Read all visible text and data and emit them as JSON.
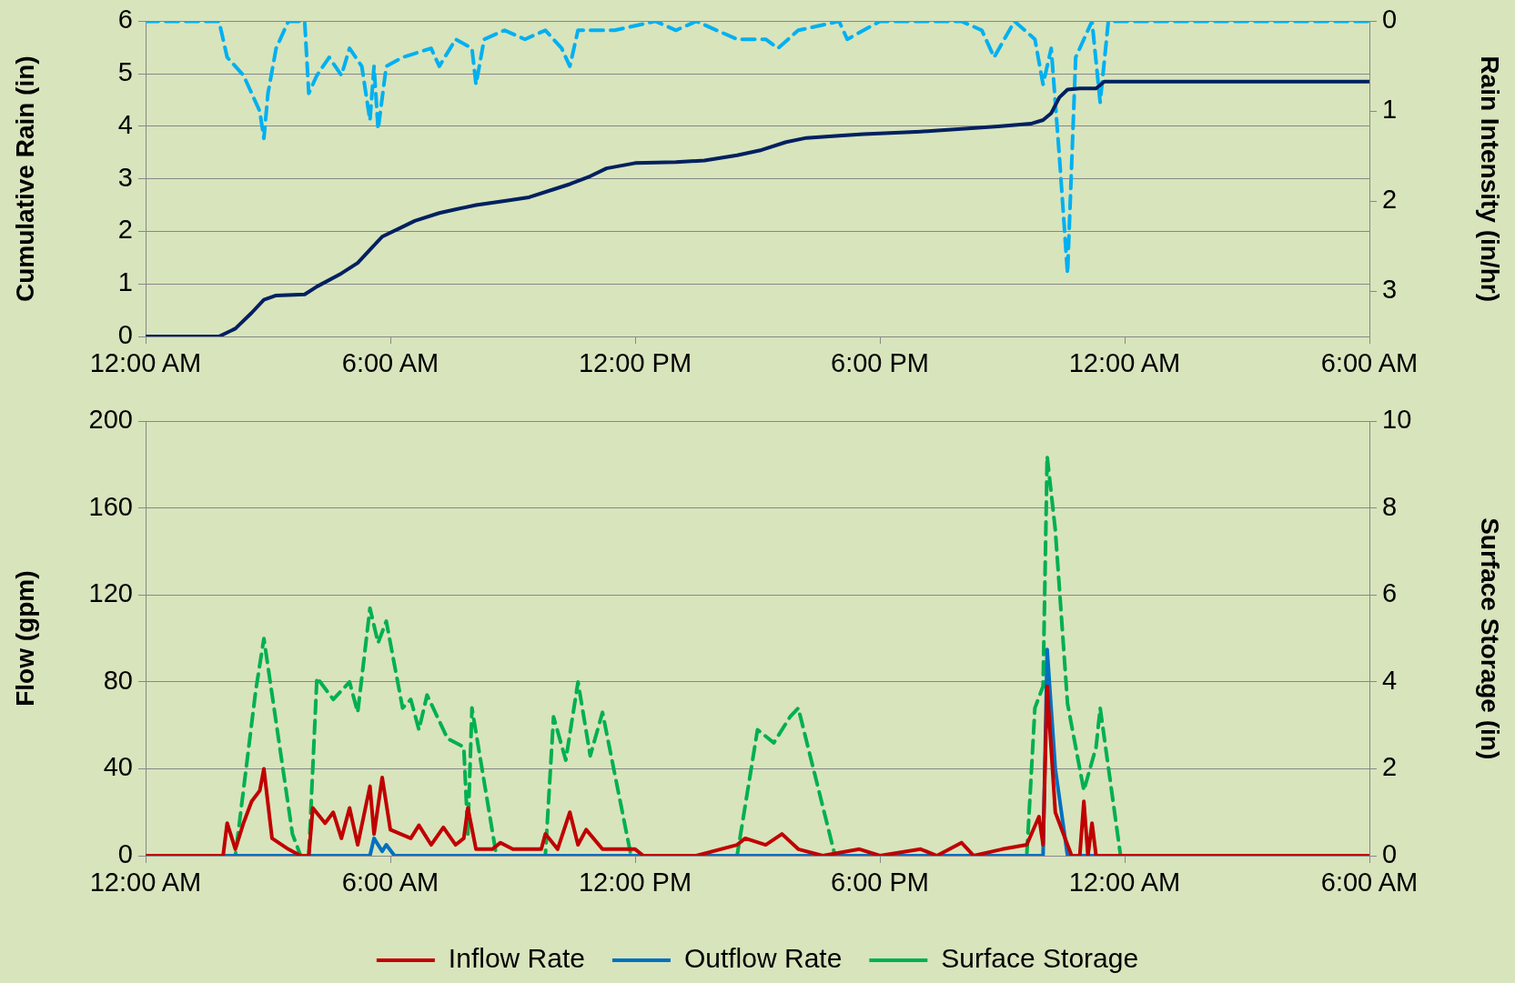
{
  "chart_data": [
    {
      "type": "line",
      "ylabel": "Cumulative Rain (in)",
      "y2label": "Rain Intensity (in/hr)",
      "xlim": [
        "--01-01T00:00",
        "--01-02T06:00"
      ],
      "xticks": [
        {
          "value": "--01-01T00:00",
          "label": "12:00 AM"
        },
        {
          "value": "--01-01T06:00",
          "label": "6:00 AM"
        },
        {
          "value": "--01-01T12:00",
          "label": "12:00 PM"
        },
        {
          "value": "--01-01T18:00",
          "label": "6:00 PM"
        },
        {
          "value": "--01-02T00:00",
          "label": "12:00 AM"
        },
        {
          "value": "--01-02T06:00",
          "label": "6:00 AM"
        }
      ],
      "ylim": [
        0,
        6
      ],
      "yticks": [
        0,
        1,
        2,
        3,
        4,
        5,
        6
      ],
      "y2lim": [
        3.5,
        0
      ],
      "y2ticks": [
        0,
        1,
        2,
        3
      ],
      "grid": "y",
      "marker": "none",
      "series": [
        {
          "color": "#002060",
          "line_style": "solid",
          "x": [
            "--01-01T00:00",
            "--01-01T01:48",
            "--01-01T02:12",
            "--01-01T02:36",
            "--01-01T02:54",
            "--01-01T03:12",
            "--01-01T03:54",
            "--01-01T04:12",
            "--01-01T04:48",
            "--01-01T05:12",
            "--01-01T05:30",
            "--01-01T05:48",
            "--01-01T06:12",
            "--01-01T06:36",
            "--01-01T07:12",
            "--01-01T07:36",
            "--01-01T08:06",
            "--01-01T08:48",
            "--01-01T09:24",
            "--01-01T10:00",
            "--01-01T10:24",
            "--01-01T10:54",
            "--01-01T11:18",
            "--01-01T12:00",
            "--01-01T13:00",
            "--01-01T13:42",
            "--01-01T14:30",
            "--01-01T15:06",
            "--01-01T15:42",
            "--01-01T16:12",
            "--01-01T17:00",
            "--01-01T17:36",
            "--01-01T18:30",
            "--01-01T19:00",
            "--01-01T20:00",
            "--01-01T20:54",
            "--01-01T21:42",
            "--01-01T22:00",
            "--01-01T22:12",
            "--01-01T22:24",
            "--01-01T22:36",
            "--01-01T22:54",
            "--01-01T23:18",
            "--01-01T23:30",
            "--01-02T06:00"
          ],
          "values": [
            0,
            0,
            0.15,
            0.45,
            0.7,
            0.78,
            0.8,
            0.95,
            1.2,
            1.4,
            1.65,
            1.9,
            2.05,
            2.2,
            2.35,
            2.42,
            2.5,
            2.58,
            2.65,
            2.8,
            2.9,
            3.05,
            3.2,
            3.3,
            3.32,
            3.35,
            3.45,
            3.55,
            3.7,
            3.78,
            3.82,
            3.85,
            3.88,
            3.9,
            3.95,
            4.0,
            4.05,
            4.12,
            4.25,
            4.55,
            4.7,
            4.72,
            4.72,
            4.85,
            4.85
          ]
        },
        {
          "color": "#00b0f0",
          "line_style": "dashed",
          "axis": "y2",
          "x": [
            "--01-01T00:00",
            "--01-01T01:48",
            "--01-01T02:00",
            "--01-01T02:24",
            "--01-01T02:48",
            "--01-01T02:54",
            "--01-01T03:00",
            "--01-01T03:12",
            "--01-01T03:30",
            "--01-01T03:54",
            "--01-01T04:00",
            "--01-01T04:12",
            "--01-01T04:30",
            "--01-01T04:48",
            "--01-01T05:00",
            "--01-01T05:18",
            "--01-01T05:30",
            "--01-01T05:36",
            "--01-01T05:42",
            "--01-01T05:54",
            "--01-01T06:18",
            "--01-01T07:00",
            "--01-01T07:12",
            "--01-01T07:36",
            "--01-01T08:00",
            "--01-01T08:06",
            "--01-01T08:18",
            "--01-01T08:48",
            "--01-01T09:18",
            "--01-01T09:48",
            "--01-01T10:12",
            "--01-01T10:24",
            "--01-01T10:36",
            "--01-01T11:30",
            "--01-01T12:30",
            "--01-01T13:00",
            "--01-01T13:30",
            "--01-01T14:30",
            "--01-01T15:12",
            "--01-01T15:30",
            "--01-01T16:00",
            "--01-01T17:00",
            "--01-01T17:12",
            "--01-01T18:00",
            "--01-01T20:00",
            "--01-01T20:30",
            "--01-01T20:48",
            "--01-01T21:18",
            "--01-01T21:48",
            "--01-01T22:00",
            "--01-01T22:12",
            "--01-01T22:24",
            "--01-01T22:36",
            "--01-01T22:48",
            "--01-01T23:12",
            "--01-01T23:24",
            "--01-01T23:36",
            "--01-02T06:00"
          ],
          "values": [
            0,
            0,
            0.4,
            0.6,
            1.0,
            1.3,
            0.8,
            0.3,
            0,
            0,
            0.8,
            0.6,
            0.4,
            0.6,
            0.3,
            0.5,
            1.1,
            0.5,
            1.2,
            0.5,
            0.4,
            0.3,
            0.5,
            0.2,
            0.3,
            0.7,
            0.2,
            0.1,
            0.2,
            0.1,
            0.3,
            0.5,
            0.1,
            0.1,
            0,
            0.1,
            0,
            0.2,
            0.2,
            0.3,
            0.1,
            0,
            0.2,
            0,
            0,
            0.1,
            0.4,
            0,
            0.2,
            0.7,
            0.3,
            1.5,
            2.8,
            0.4,
            0,
            0.9,
            0,
            0
          ]
        }
      ]
    },
    {
      "type": "line",
      "ylabel": "Flow (gpm)",
      "y2label": "Surface Storage (in)",
      "xlim": [
        "--01-01T00:00",
        "--01-02T06:00"
      ],
      "xticks": [
        {
          "value": "--01-01T00:00",
          "label": "12:00 AM"
        },
        {
          "value": "--01-01T06:00",
          "label": "6:00 AM"
        },
        {
          "value": "--01-01T12:00",
          "label": "12:00 PM"
        },
        {
          "value": "--01-01T18:00",
          "label": "6:00 PM"
        },
        {
          "value": "--01-02T00:00",
          "label": "12:00 AM"
        },
        {
          "value": "--01-02T06:00",
          "label": "6:00 AM"
        }
      ],
      "ylim": [
        0,
        200
      ],
      "yticks": [
        0,
        40,
        80,
        120,
        160,
        200
      ],
      "y2lim": [
        0,
        10
      ],
      "y2ticks": [
        0,
        2,
        4,
        6,
        8,
        10
      ],
      "grid": "y",
      "marker": "none",
      "legend": "bottom",
      "series": [
        {
          "name": "Inflow Rate",
          "color": "#c00000",
          "line_style": "solid",
          "x": [
            "--01-01T00:00",
            "--01-01T01:54",
            "--01-01T02:00",
            "--01-01T02:12",
            "--01-01T02:24",
            "--01-01T02:36",
            "--01-01T02:48",
            "--01-01T02:54",
            "--01-01T03:06",
            "--01-01T03:30",
            "--01-01T03:48",
            "--01-01T04:00",
            "--01-01T04:06",
            "--01-01T04:24",
            "--01-01T04:36",
            "--01-01T04:48",
            "--01-01T05:00",
            "--01-01T05:12",
            "--01-01T05:30",
            "--01-01T05:36",
            "--01-01T05:48",
            "--01-01T06:00",
            "--01-01T06:30",
            "--01-01T06:42",
            "--01-01T07:00",
            "--01-01T07:18",
            "--01-01T07:36",
            "--01-01T07:48",
            "--01-01T07:54",
            "--01-01T08:06",
            "--01-01T08:30",
            "--01-01T08:42",
            "--01-01T09:00",
            "--01-01T09:42",
            "--01-01T09:48",
            "--01-01T10:06",
            "--01-01T10:24",
            "--01-01T10:36",
            "--01-01T10:48",
            "--01-01T11:12",
            "--01-01T12:00",
            "--01-01T12:12",
            "--01-01T13:30",
            "--01-01T14:30",
            "--01-01T14:42",
            "--01-01T15:12",
            "--01-01T15:36",
            "--01-01T16:00",
            "--01-01T16:36",
            "--01-01T17:30",
            "--01-01T18:00",
            "--01-01T19:00",
            "--01-01T19:24",
            "--01-01T20:00",
            "--01-01T20:18",
            "--01-01T21:00",
            "--01-01T21:36",
            "--01-01T21:54",
            "--01-01T22:00",
            "--01-01T22:06",
            "--01-01T22:18",
            "--01-01T22:42",
            "--01-01T22:54",
            "--01-01T23:00",
            "--01-01T23:06",
            "--01-01T23:12",
            "--01-01T23:18",
            "--01-02T06:00"
          ],
          "values": [
            0,
            0,
            15,
            3,
            15,
            25,
            30,
            40,
            8,
            3,
            0,
            0,
            22,
            15,
            20,
            8,
            22,
            5,
            32,
            10,
            36,
            12,
            8,
            14,
            5,
            13,
            5,
            8,
            22,
            3,
            3,
            6,
            3,
            3,
            10,
            3,
            20,
            5,
            12,
            3,
            3,
            0,
            0,
            5,
            8,
            5,
            10,
            3,
            0,
            3,
            0,
            3,
            0,
            6,
            0,
            3,
            5,
            18,
            5,
            78,
            20,
            0,
            0,
            25,
            0,
            15,
            0,
            0
          ]
        },
        {
          "name": "Outflow Rate",
          "color": "#0070c0",
          "line_style": "solid",
          "x": [
            "--01-01T00:00",
            "--01-01T05:30",
            "--01-01T05:36",
            "--01-01T05:48",
            "--01-01T05:54",
            "--01-01T06:06",
            "--01-01T22:00",
            "--01-01T22:06",
            "--01-01T22:18",
            "--01-01T22:36",
            "--01-02T06:00"
          ],
          "values": [
            0,
            0,
            8,
            2,
            5,
            0,
            0,
            95,
            40,
            0,
            0
          ]
        },
        {
          "name": "Surface Storage",
          "color": "#00b050",
          "line_style": "dashed",
          "axis": "y2",
          "x": [
            "--01-01T00:00",
            "--01-01T02:12",
            "--01-01T02:42",
            "--01-01T02:54",
            "--01-01T03:36",
            "--01-01T03:48",
            "--01-01T04:00",
            "--01-01T04:12",
            "--01-01T04:36",
            "--01-01T05:00",
            "--01-01T05:12",
            "--01-01T05:30",
            "--01-01T05:42",
            "--01-01T05:54",
            "--01-01T06:18",
            "--01-01T06:30",
            "--01-01T06:42",
            "--01-01T06:54",
            "--01-01T07:24",
            "--01-01T07:48",
            "--01-01T07:54",
            "--01-01T08:00",
            "--01-01T08:36",
            "--01-01T09:48",
            "--01-01T10:00",
            "--01-01T10:18",
            "--01-01T10:36",
            "--01-01T10:54",
            "--01-01T11:12",
            "--01-01T11:54",
            "--01-01T14:30",
            "--01-01T15:00",
            "--01-01T15:24",
            "--01-01T15:48",
            "--01-01T16:00",
            "--01-01T16:54",
            "--01-01T21:36",
            "--01-01T21:48",
            "--01-01T22:00",
            "--01-01T22:06",
            "--01-01T22:18",
            "--01-01T22:36",
            "--01-01T23:00",
            "--01-01T23:18",
            "--01-01T23:24",
            "--01-01T23:54",
            "--01-02T06:00"
          ],
          "values": [
            0,
            0,
            3.8,
            5.0,
            0.5,
            0,
            0,
            4.1,
            3.6,
            4.0,
            3.3,
            5.7,
            4.9,
            5.4,
            3.4,
            3.6,
            2.9,
            3.7,
            2.7,
            2.5,
            0.5,
            3.4,
            0,
            0,
            3.2,
            2.2,
            4.0,
            2.3,
            3.3,
            0,
            0,
            2.9,
            2.6,
            3.2,
            3.4,
            0,
            0,
            3.4,
            3.9,
            9.2,
            7.5,
            3.5,
            1.5,
            2.5,
            3.4,
            0,
            0
          ]
        }
      ]
    }
  ]
}
